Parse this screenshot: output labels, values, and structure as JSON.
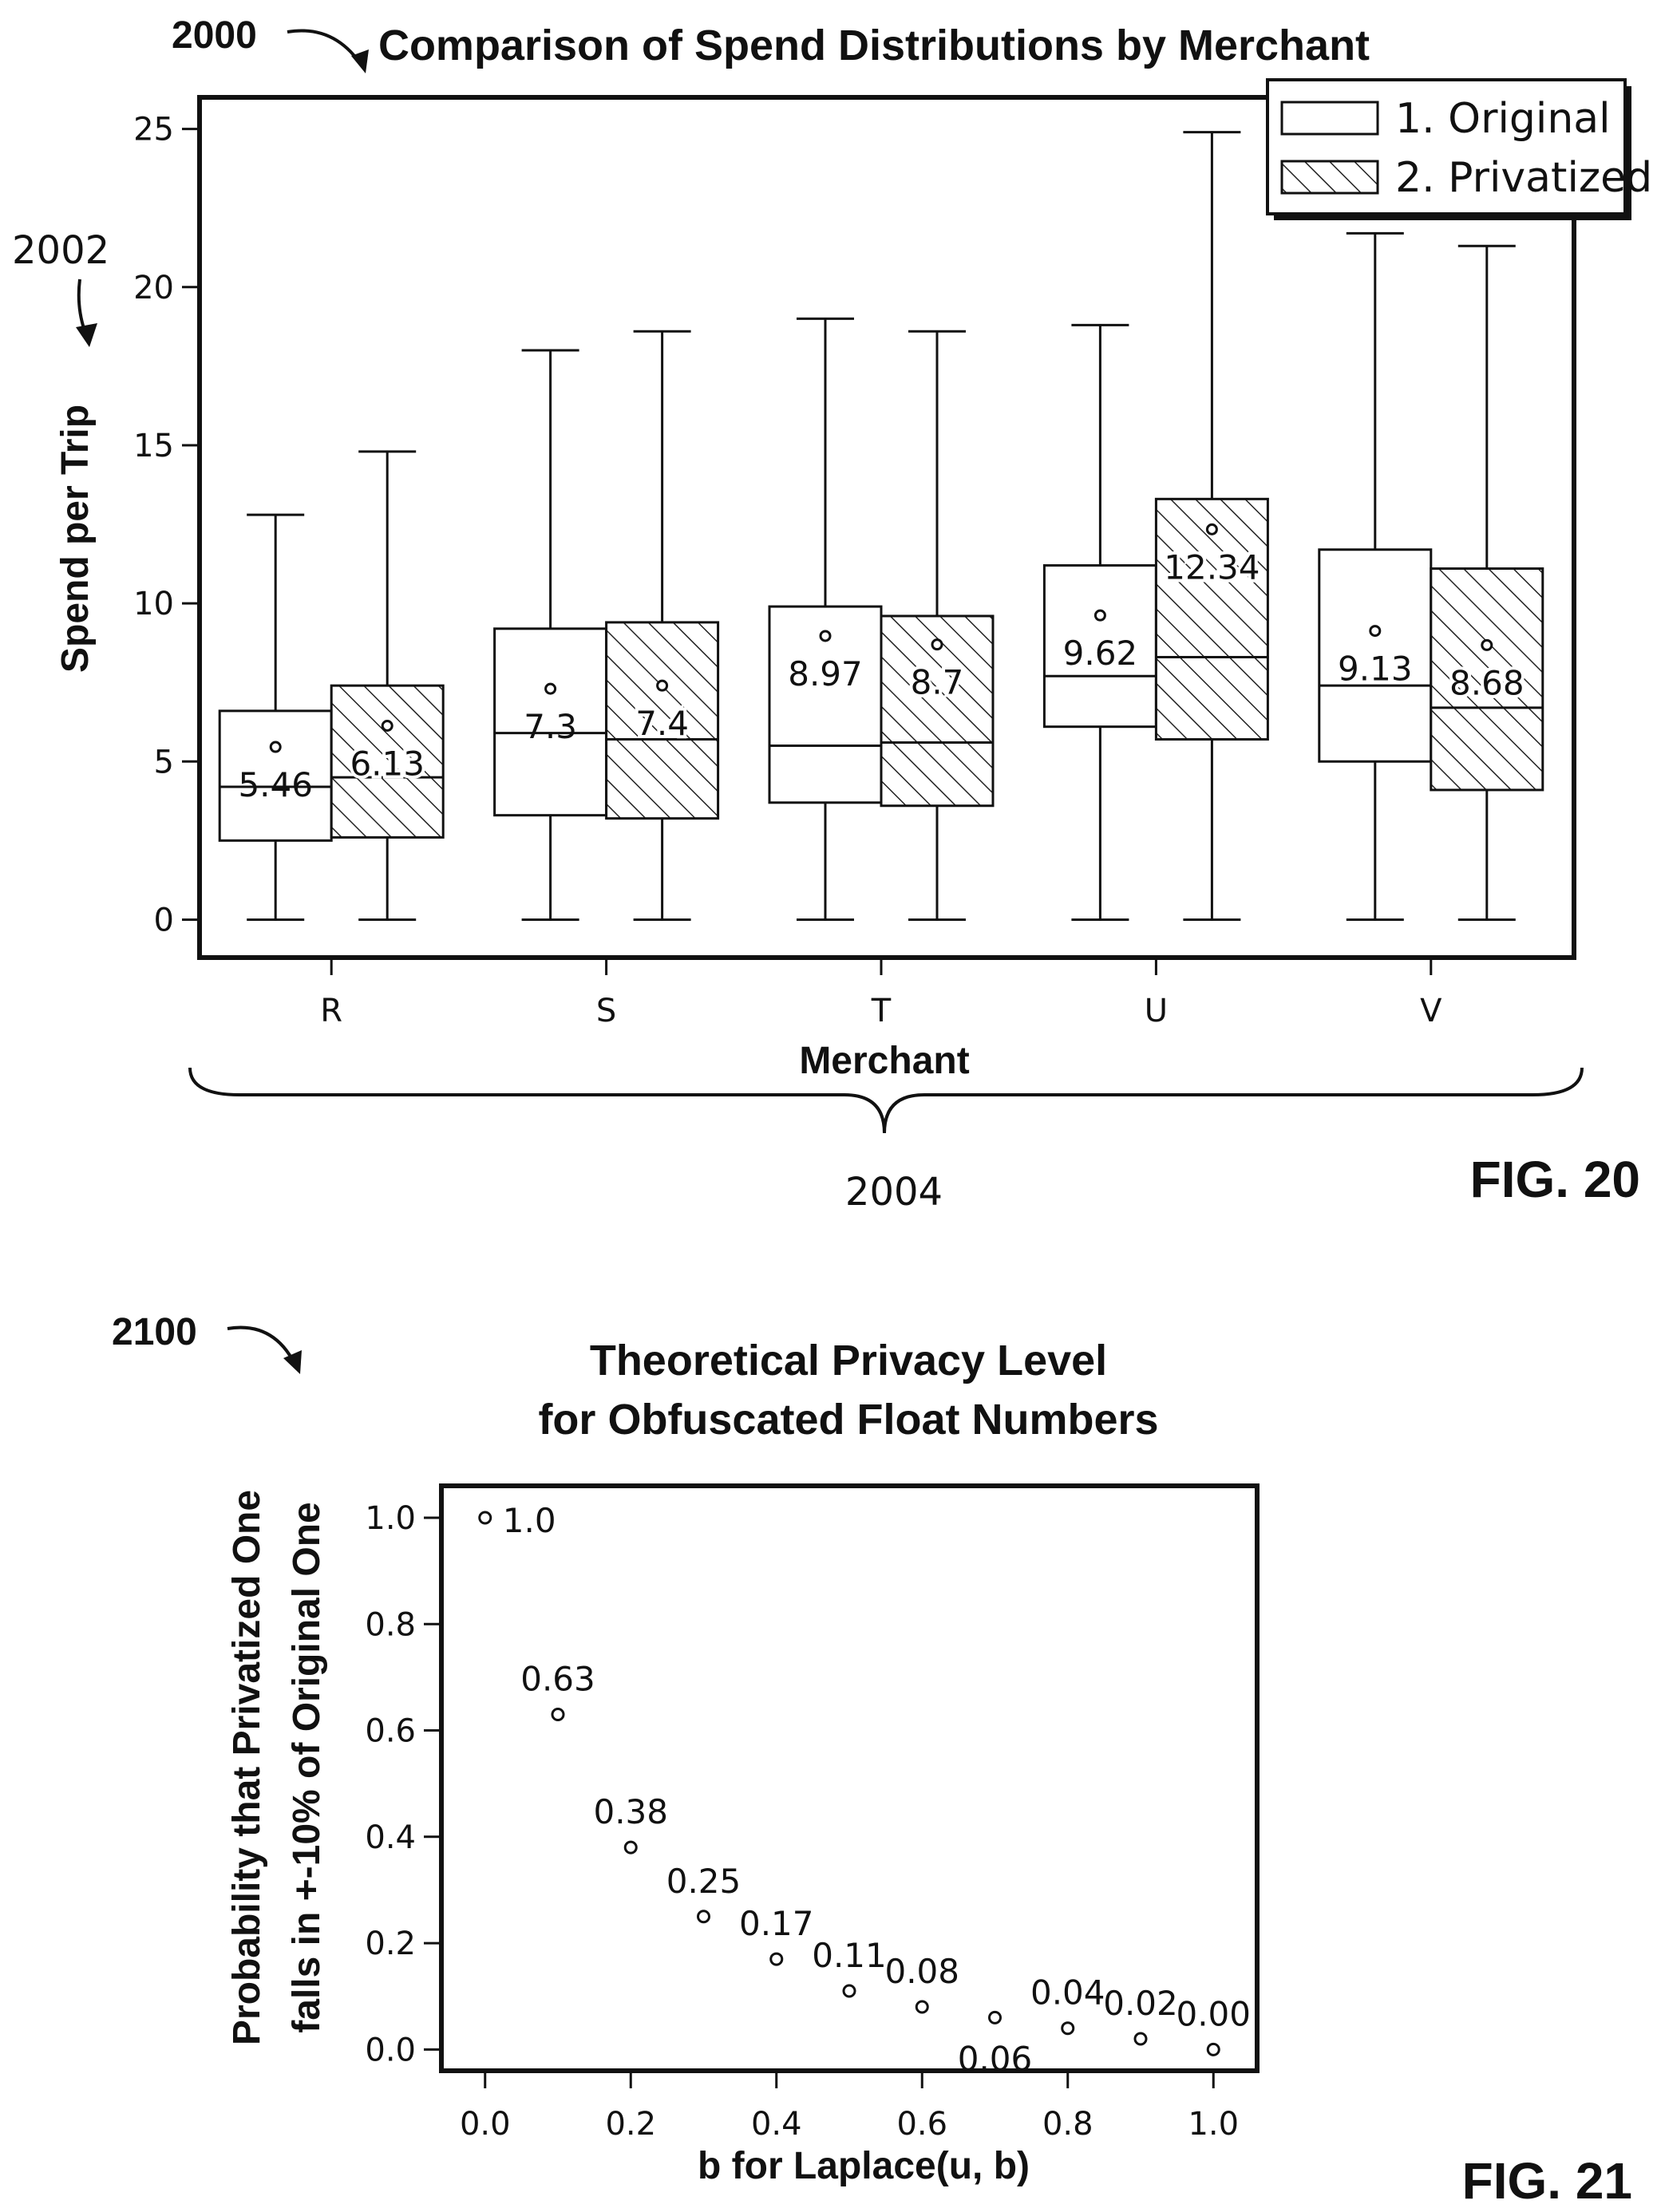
{
  "figures": {
    "fig20": {
      "label": "FIG. 20",
      "ref_number": "2000",
      "ref_yaxis": "2002",
      "ref_xaxis": "2004"
    },
    "fig21": {
      "label": "FIG. 21",
      "ref_number": "2100"
    }
  },
  "chart_data": [
    {
      "type": "box",
      "title": "Comparison of Spend Distributions by Merchant",
      "xlabel": "Merchant",
      "ylabel": "Spend per Trip",
      "ylim": [
        -1.2,
        26
      ],
      "yticks": [
        0,
        5,
        10,
        15,
        20,
        25
      ],
      "categories": [
        "R",
        "S",
        "T",
        "U",
        "V"
      ],
      "legend": {
        "position": "top-right",
        "entries": [
          "1. Original",
          "2. Privatized"
        ]
      },
      "series": [
        {
          "name": "1. Original",
          "style": "plain",
          "boxes": [
            {
              "min": 0,
              "q1": 2.5,
              "median": 4.2,
              "q3": 6.6,
              "max": 12.8,
              "mean": 5.46,
              "label": "5.46"
            },
            {
              "min": 0,
              "q1": 3.3,
              "median": 5.9,
              "q3": 9.2,
              "max": 18.0,
              "mean": 7.3,
              "label": "7.3"
            },
            {
              "min": 0,
              "q1": 3.7,
              "median": 5.5,
              "q3": 9.9,
              "max": 19.0,
              "mean": 8.97,
              "label": "8.97"
            },
            {
              "min": 0,
              "q1": 6.1,
              "median": 7.7,
              "q3": 11.2,
              "max": 18.8,
              "mean": 9.62,
              "label": "9.62"
            },
            {
              "min": 0,
              "q1": 5.0,
              "median": 7.4,
              "q3": 11.7,
              "max": 21.7,
              "mean": 9.13,
              "label": "9.13"
            }
          ]
        },
        {
          "name": "2. Privatized",
          "style": "hatched",
          "boxes": [
            {
              "min": 0,
              "q1": 2.6,
              "median": 4.5,
              "q3": 7.4,
              "max": 14.8,
              "mean": 6.13,
              "label": "6.13"
            },
            {
              "min": 0,
              "q1": 3.2,
              "median": 5.7,
              "q3": 9.4,
              "max": 18.6,
              "mean": 7.4,
              "label": "7.4"
            },
            {
              "min": 0,
              "q1": 3.6,
              "median": 5.6,
              "q3": 9.6,
              "max": 18.6,
              "mean": 8.7,
              "label": "8.7"
            },
            {
              "min": 0,
              "q1": 5.7,
              "median": 8.3,
              "q3": 13.3,
              "max": 24.9,
              "mean": 12.34,
              "label": "12.34"
            },
            {
              "min": 0,
              "q1": 4.1,
              "median": 6.7,
              "q3": 11.1,
              "max": 21.3,
              "mean": 8.68,
              "label": "8.68"
            }
          ]
        }
      ]
    },
    {
      "type": "scatter",
      "title_lines": [
        "Theoretical Privacy Level",
        "for Obfuscated Float Numbers"
      ],
      "xlabel": "b for Laplace(u, b)",
      "ylabel_lines": [
        "Probability that Privatized One",
        "falls in +-10% of Original One"
      ],
      "xlim": [
        -0.06,
        1.06
      ],
      "ylim": [
        -0.04,
        1.06
      ],
      "xticks": [
        "0.0",
        "0.2",
        "0.4",
        "0.6",
        "0.8",
        "1.0"
      ],
      "yticks": [
        "0.0",
        "0.2",
        "0.4",
        "0.6",
        "0.8",
        "1.0"
      ],
      "points": [
        {
          "x": 0.0,
          "y": 1.0,
          "label": "1.0",
          "label_pos": "right"
        },
        {
          "x": 0.1,
          "y": 0.63,
          "label": "0.63",
          "label_pos": "above"
        },
        {
          "x": 0.2,
          "y": 0.38,
          "label": "0.38",
          "label_pos": "above"
        },
        {
          "x": 0.3,
          "y": 0.25,
          "label": "0.25",
          "label_pos": "above"
        },
        {
          "x": 0.4,
          "y": 0.17,
          "label": "0.17",
          "label_pos": "above"
        },
        {
          "x": 0.5,
          "y": 0.11,
          "label": "0.11",
          "label_pos": "above"
        },
        {
          "x": 0.6,
          "y": 0.08,
          "label": "0.08",
          "label_pos": "above"
        },
        {
          "x": 0.7,
          "y": 0.06,
          "label": "0.06",
          "label_pos": "below"
        },
        {
          "x": 0.8,
          "y": 0.04,
          "label": "0.04",
          "label_pos": "above"
        },
        {
          "x": 0.9,
          "y": 0.02,
          "label": "0.02",
          "label_pos": "above"
        },
        {
          "x": 1.0,
          "y": 0.0,
          "label": "0.00",
          "label_pos": "above"
        }
      ]
    }
  ]
}
